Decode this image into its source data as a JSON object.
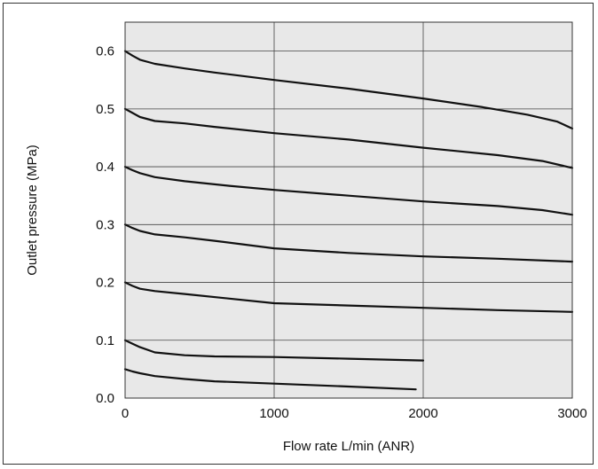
{
  "chart_data": {
    "type": "line",
    "title": "",
    "xlabel": "Flow rate L/min (ANR)",
    "ylabel": "Outlet pressure (MPa)",
    "xlim": [
      0,
      3000
    ],
    "ylim": [
      0,
      0.65
    ],
    "x_ticks": [
      0,
      1000,
      2000,
      3000
    ],
    "x_tick_labels": [
      "0",
      "1000",
      "2000",
      "3000"
    ],
    "y_ticks": [
      0,
      0.1,
      0.2,
      0.3,
      0.4,
      0.5,
      0.6
    ],
    "y_tick_labels": [
      "0.0",
      "0.1",
      "0.2",
      "0.3",
      "0.4",
      "0.5",
      "0.6"
    ],
    "grid": true,
    "plot_background": "#e8e8e8",
    "line_color": "#111111",
    "series": [
      {
        "x": [
          0,
          50,
          100,
          200,
          400,
          600,
          1000,
          1500,
          2000,
          2400,
          2700,
          2900,
          3000
        ],
        "y": [
          0.6,
          0.592,
          0.585,
          0.578,
          0.57,
          0.563,
          0.55,
          0.535,
          0.518,
          0.503,
          0.49,
          0.478,
          0.466
        ]
      },
      {
        "x": [
          0,
          50,
          100,
          200,
          400,
          600,
          1000,
          1500,
          2000,
          2500,
          2800,
          3000
        ],
        "y": [
          0.5,
          0.493,
          0.486,
          0.479,
          0.475,
          0.469,
          0.458,
          0.447,
          0.433,
          0.42,
          0.41,
          0.398
        ]
      },
      {
        "x": [
          0,
          50,
          100,
          200,
          400,
          700,
          1000,
          1500,
          2000,
          2500,
          2800,
          3000
        ],
        "y": [
          0.4,
          0.394,
          0.389,
          0.382,
          0.375,
          0.367,
          0.36,
          0.35,
          0.34,
          0.332,
          0.325,
          0.317
        ]
      },
      {
        "x": [
          0,
          50,
          100,
          200,
          400,
          600,
          1000,
          1500,
          2000,
          2500,
          3000
        ],
        "y": [
          0.3,
          0.294,
          0.289,
          0.283,
          0.278,
          0.272,
          0.259,
          0.251,
          0.245,
          0.241,
          0.236
        ]
      },
      {
        "x": [
          0,
          50,
          100,
          200,
          400,
          700,
          1000,
          1500,
          2000,
          2500,
          3000
        ],
        "y": [
          0.2,
          0.194,
          0.189,
          0.185,
          0.18,
          0.172,
          0.164,
          0.16,
          0.156,
          0.152,
          0.149
        ]
      },
      {
        "x": [
          0,
          50,
          100,
          200,
          400,
          600,
          1000,
          1500,
          2000
        ],
        "y": [
          0.1,
          0.094,
          0.088,
          0.079,
          0.074,
          0.072,
          0.071,
          0.068,
          0.065
        ]
      },
      {
        "x": [
          0,
          50,
          100,
          200,
          400,
          600,
          1000,
          1500,
          1950
        ],
        "y": [
          0.05,
          0.046,
          0.043,
          0.038,
          0.033,
          0.029,
          0.025,
          0.02,
          0.015
        ]
      }
    ]
  }
}
